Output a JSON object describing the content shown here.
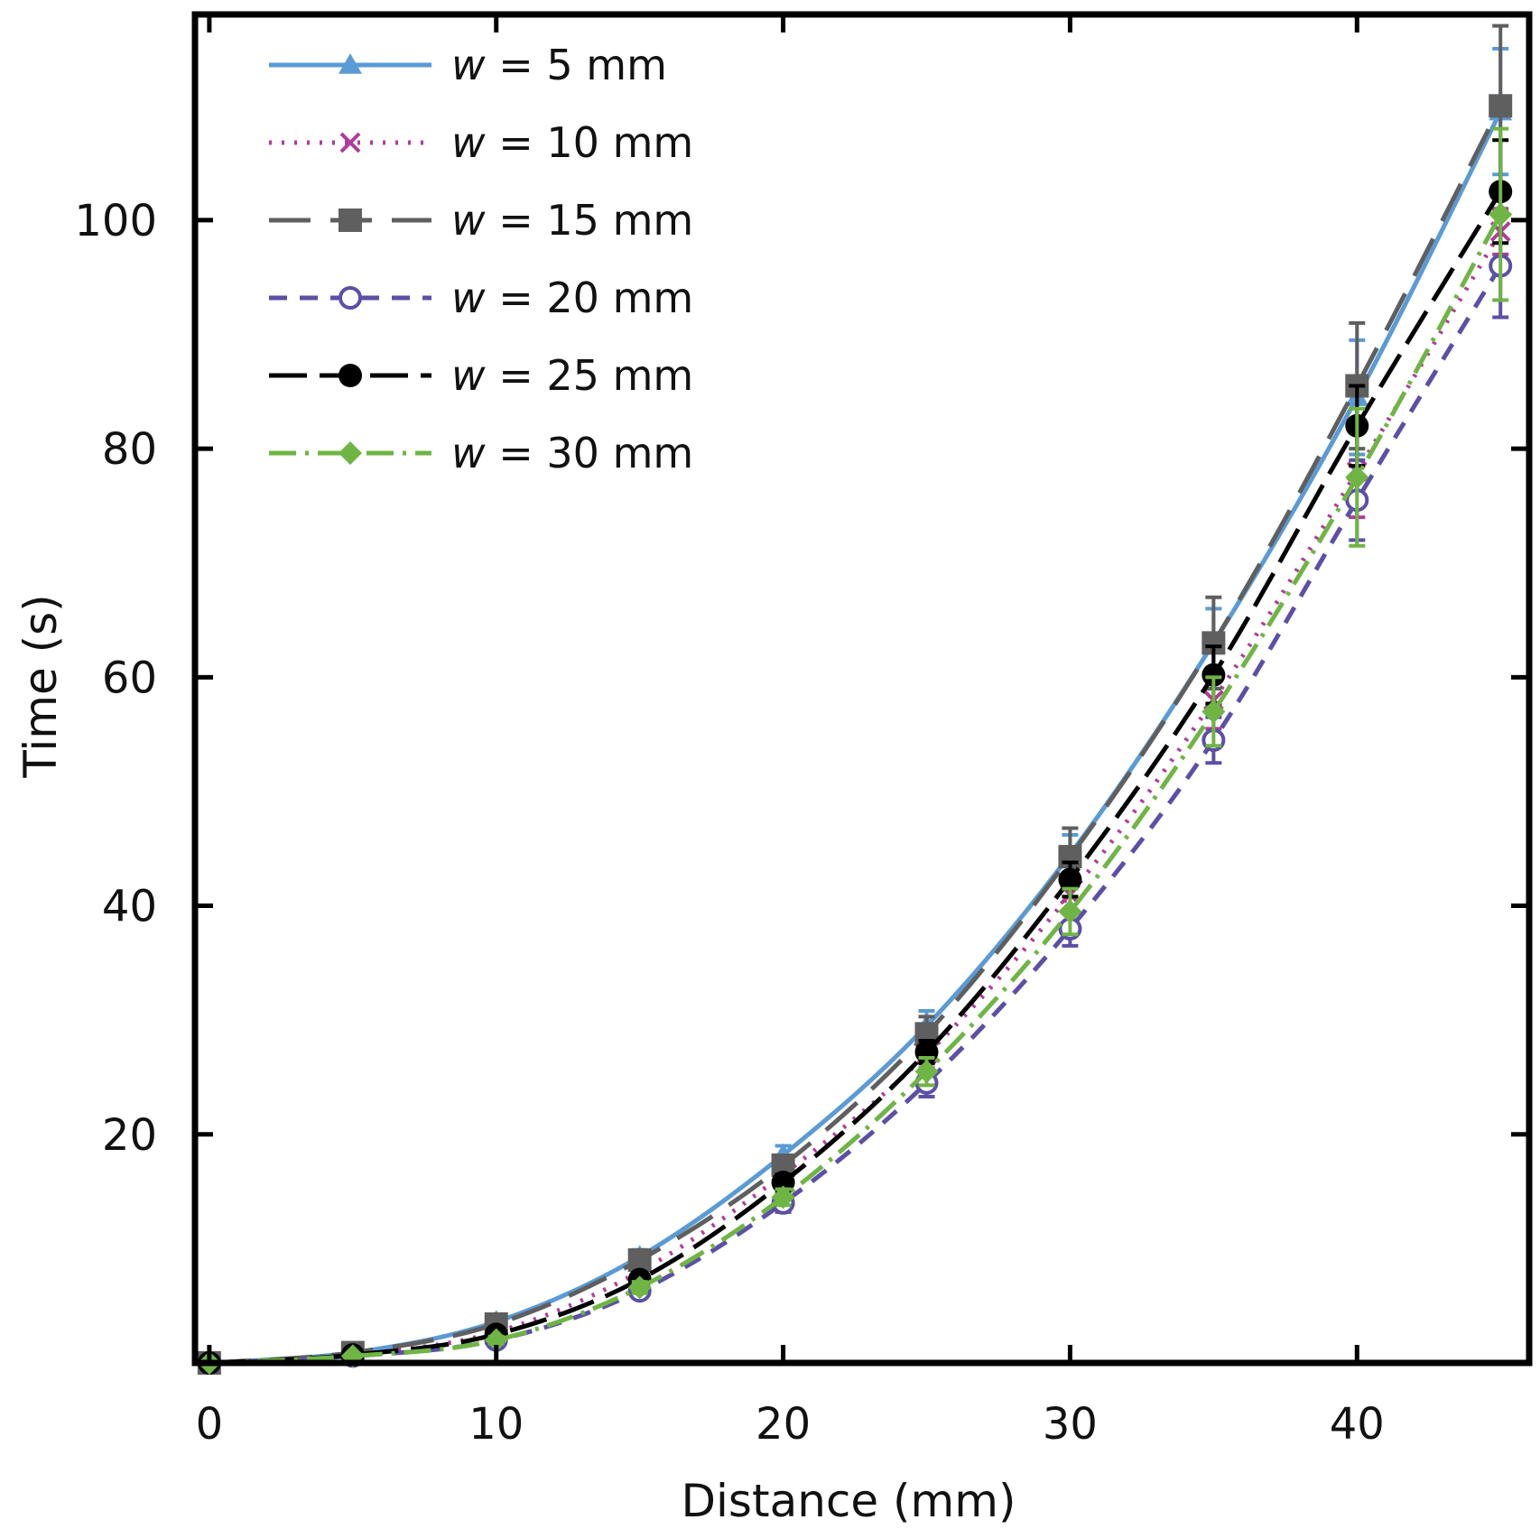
{
  "chart_data": {
    "type": "line",
    "title": "",
    "xlabel": "Distance (mm)",
    "ylabel": "Time (s)",
    "xlim": [
      -0.5,
      46
    ],
    "ylim": [
      0,
      118
    ],
    "xticks": [
      "0",
      "10",
      "20",
      "30",
      "40"
    ],
    "yticks": [
      "20",
      "40",
      "60",
      "80",
      "100"
    ],
    "x": [
      0,
      5,
      10,
      15,
      20,
      25,
      30,
      35,
      40,
      45
    ],
    "legend_location": "top-left",
    "series": [
      {
        "name": "w = 5 mm",
        "var": "w",
        "rest": " = 5 mm",
        "color": "#5b9bd5",
        "marker": "triangle",
        "dash": "",
        "values": [
          0,
          0.9,
          3.6,
          9.3,
          18.2,
          29.5,
          44.5,
          63,
          84.5,
          109.5
        ],
        "errors": [
          0,
          0.2,
          0.4,
          0.6,
          0.8,
          1.3,
          1.7,
          3,
          5,
          5.5
        ]
      },
      {
        "name": "w = 10 mm",
        "var": "w",
        "rest": " = 10 mm",
        "color": "#b03b9c",
        "marker": "x",
        "dash": "3 11",
        "values": [
          0,
          0.7,
          2.7,
          8,
          16.5,
          27,
          41,
          58,
          78,
          99
        ],
        "errors": [
          0,
          0.2,
          0.4,
          0.5,
          0.8,
          1.2,
          1.5,
          2.5,
          4,
          2
        ]
      },
      {
        "name": "w = 15 mm",
        "var": "w",
        "rest": " = 15 mm",
        "color": "#5f5f5f",
        "marker": "square",
        "dash": "46 22",
        "values": [
          0,
          0.9,
          3.4,
          9,
          17.3,
          28.8,
          44.3,
          63,
          85.5,
          110
        ],
        "errors": [
          0,
          0.2,
          0.4,
          0.6,
          0.8,
          1.5,
          2.5,
          4,
          5.5,
          7
        ]
      },
      {
        "name": "w = 20 mm",
        "var": "w",
        "rest": " = 20 mm",
        "color": "#5b4fa6",
        "marker": "circle-open",
        "dash": "20 14",
        "values": [
          0,
          0.6,
          2,
          6.3,
          14,
          24.5,
          38,
          54.5,
          75.5,
          96
        ],
        "errors": [
          0,
          0.2,
          0.3,
          0.5,
          0.8,
          1.2,
          1.5,
          2,
          3.5,
          4.5
        ]
      },
      {
        "name": "w = 25 mm",
        "var": "w",
        "rest": " = 25 mm",
        "color": "#000000",
        "marker": "circle",
        "dash": "42 14",
        "values": [
          0,
          0.7,
          2.5,
          7.3,
          15.8,
          27.2,
          42.3,
          60.2,
          82,
          102.5
        ],
        "errors": [
          0,
          0.2,
          0.3,
          0.5,
          0.7,
          1,
          1.5,
          2.5,
          3.5,
          4.5
        ]
      },
      {
        "name": "w = 30 mm",
        "var": "w",
        "rest": " = 30 mm",
        "color": "#6fb544",
        "marker": "diamond",
        "dash": "30 10 4 10",
        "values": [
          0,
          0.6,
          2,
          6.6,
          14.5,
          25.5,
          39.5,
          57,
          77.5,
          100.5
        ],
        "errors": [
          0,
          0.2,
          0.3,
          0.5,
          0.7,
          1.2,
          2,
          3,
          6,
          7.5
        ]
      }
    ]
  }
}
